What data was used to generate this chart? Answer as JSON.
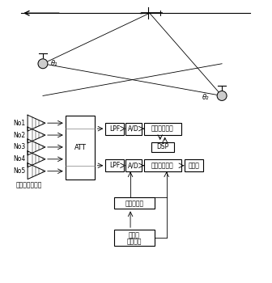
{
  "bg_color": "#ffffff",
  "mic_labels": [
    "No1",
    "No2",
    "No3",
    "No4",
    "No5"
  ],
  "mic_label_bottom": "マイクロフォン",
  "att_label": "ATT",
  "lpf_label": "LPF",
  "ad_label": "A/D",
  "dsp_label": "DSP",
  "computer_label": "コンピュータ",
  "modem_label": "モデム",
  "kisho_label": "気象測定器",
  "kouku_line1": "航空機",
  "kouku_line2": "識別装置",
  "theta1_label": "θ₁",
  "theta2_label": "θ₂"
}
